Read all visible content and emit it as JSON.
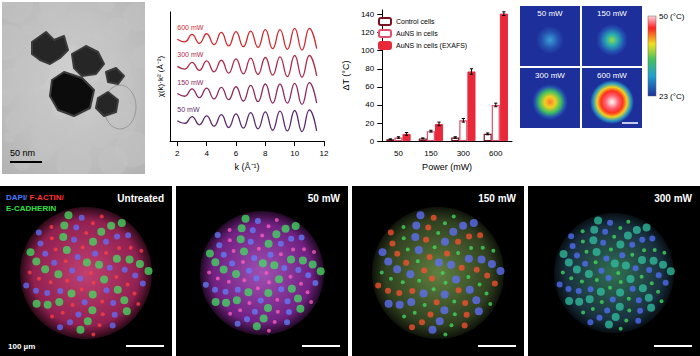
{
  "chart_data": [
    {
      "type": "line",
      "x_label": "k (Å⁻¹)",
      "y_label": "χ(k)·k² (Å⁻²)",
      "x": [
        2,
        2.5,
        3,
        3.5,
        4,
        4.5,
        5,
        5.5,
        6,
        6.5,
        7,
        7.5,
        8,
        8.5,
        9,
        9.5,
        10,
        10.5,
        11,
        11.5
      ],
      "series": [
        {
          "name": "50 mW",
          "color": "#5b2a6e",
          "values": [
            1.5,
            1.3,
            1.8,
            1.2,
            1.85,
            1.1,
            1.95,
            1.0,
            2.0,
            0.95,
            2.1,
            0.9,
            2.15,
            0.8,
            2.2,
            0.75,
            2.25,
            0.7,
            2.3,
            0.75
          ]
        },
        {
          "name": "150 mW",
          "color": "#8b2a5e",
          "values": [
            3.5,
            3.3,
            3.85,
            3.2,
            3.9,
            3.1,
            3.95,
            3.05,
            4.0,
            2.95,
            4.1,
            2.9,
            4.2,
            2.8,
            4.2,
            2.8,
            4.25,
            2.7,
            4.3,
            2.8
          ]
        },
        {
          "name": "300 mW",
          "color": "#b02a4a",
          "values": [
            5.5,
            5.3,
            5.8,
            5.2,
            5.9,
            5.1,
            5.95,
            5.0,
            6.05,
            4.95,
            6.1,
            4.9,
            6.15,
            4.85,
            6.2,
            4.75,
            6.3,
            4.7,
            6.3,
            4.8
          ]
        },
        {
          "name": "600 mW",
          "color": "#d0282e",
          "values": [
            7.5,
            7.3,
            7.85,
            7.2,
            7.9,
            7.1,
            8.0,
            7.0,
            8.05,
            6.95,
            8.1,
            6.9,
            8.2,
            6.8,
            8.2,
            6.75,
            8.3,
            6.7,
            8.3,
            6.8
          ]
        }
      ],
      "xlim": [
        1.5,
        12
      ],
      "xticks": [
        2,
        4,
        6,
        8,
        10,
        12
      ],
      "ylim": [
        0,
        9.5
      ],
      "tick_labels": "x",
      "grid": false
    },
    {
      "type": "bar",
      "x_label": "Power (mW)",
      "y_label": "ΔT (°C)",
      "categories": [
        "50",
        "150",
        "300",
        "600"
      ],
      "series": [
        {
          "name": "Control cells",
          "color": "#7a1020",
          "marker": "hollow",
          "values": [
            2,
            3,
            4,
            8
          ],
          "errors": [
            0.5,
            0.5,
            0.8,
            1
          ]
        },
        {
          "name": "AuNS in cells",
          "color": "#e0506a",
          "marker": "hollow",
          "values": [
            4,
            11,
            23,
            40
          ],
          "errors": [
            0.8,
            1,
            2,
            2
          ]
        },
        {
          "name": "AuNS in cells (EXAFS)",
          "color": "#e8293a",
          "marker": "filled",
          "values": [
            8,
            19,
            77,
            141
          ],
          "errors": [
            1.5,
            2,
            3,
            2
          ]
        }
      ],
      "ylim": [
        0,
        145
      ],
      "yticks": [
        0,
        20,
        40,
        60,
        80,
        100,
        120,
        140
      ],
      "legend": "top-left",
      "grid": false
    }
  ],
  "tem": {
    "scale_bar": "50 nm"
  },
  "thermal": {
    "panels": [
      "50 mW",
      "150 mW",
      "300 mW",
      "600 mW"
    ],
    "colorbar": {
      "range": [
        23,
        50
      ],
      "ticks": [
        {
          "value": 50,
          "label": "50 (°C)"
        },
        {
          "value": 23,
          "label": "23 (°C)"
        }
      ]
    }
  },
  "microscopy": {
    "stain_legend": [
      {
        "text": "DAPI/",
        "color": "#4a7cff"
      },
      {
        "text": "F-ACTIN/",
        "color": "#ff3030"
      },
      {
        "text": "E-CADHERIN",
        "color": "#30e040"
      }
    ],
    "panels": [
      "Untreated",
      "50 mW",
      "150 mW",
      "300 mW"
    ],
    "scale_bar": "100 µm"
  }
}
